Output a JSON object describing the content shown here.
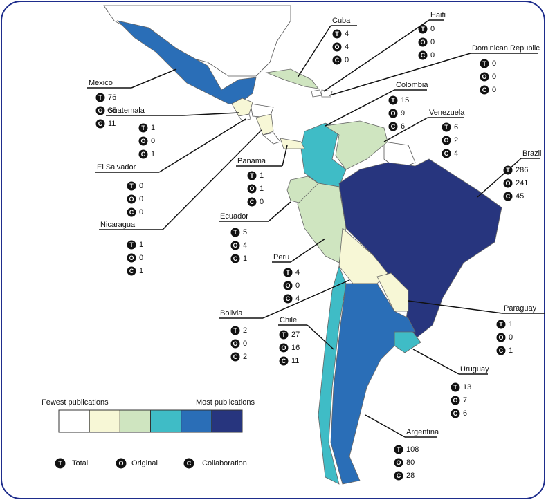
{
  "countries": [
    {
      "name": "Mexico",
      "total": 76,
      "original": 65,
      "collaboration": 11,
      "color": "#2a6eb7"
    },
    {
      "name": "Cuba",
      "total": 4,
      "original": 4,
      "collaboration": 0,
      "color": "#cfe5c0"
    },
    {
      "name": "Haiti",
      "total": 0,
      "original": 0,
      "collaboration": 0,
      "color": "#ffffff"
    },
    {
      "name": "Dominican Republic",
      "total": 0,
      "original": 0,
      "collaboration": 0,
      "color": "#ffffff"
    },
    {
      "name": "Colombia",
      "total": 15,
      "original": 9,
      "collaboration": 6,
      "color": "#3fbcc6"
    },
    {
      "name": "Guatemala",
      "total": 1,
      "original": 0,
      "collaboration": 1,
      "color": "#f7f7d6"
    },
    {
      "name": "Venezuela",
      "total": 6,
      "original": 2,
      "collaboration": 4,
      "color": "#cfe5c0"
    },
    {
      "name": "Brazil",
      "total": 286,
      "original": 241,
      "collaboration": 45,
      "color": "#27357e"
    },
    {
      "name": "El Salvador",
      "total": 0,
      "original": 0,
      "collaboration": 0,
      "color": "#ffffff"
    },
    {
      "name": "Panama",
      "total": 1,
      "original": 1,
      "collaboration": 0,
      "color": "#f7f7d6"
    },
    {
      "name": "Ecuador",
      "total": 5,
      "original": 4,
      "collaboration": 1,
      "color": "#cfe5c0"
    },
    {
      "name": "Nicaragua",
      "total": 1,
      "original": 0,
      "collaboration": 1,
      "color": "#f7f7d6"
    },
    {
      "name": "Peru",
      "total": 4,
      "original": 0,
      "collaboration": 4,
      "color": "#cfe5c0"
    },
    {
      "name": "Bolivia",
      "total": 2,
      "original": 0,
      "collaboration": 2,
      "color": "#f7f7d6"
    },
    {
      "name": "Chile",
      "total": 27,
      "original": 16,
      "collaboration": 11,
      "color": "#3fbcc6"
    },
    {
      "name": "Paraguay",
      "total": 1,
      "original": 0,
      "collaboration": 1,
      "color": "#f7f7d6"
    },
    {
      "name": "Uruguay",
      "total": 13,
      "original": 7,
      "collaboration": 6,
      "color": "#3fbcc6"
    },
    {
      "name": "Argentina",
      "total": 108,
      "original": 80,
      "collaboration": 28,
      "color": "#2a6eb7"
    }
  ],
  "legend": {
    "low": "Fewest publications",
    "high": "Most publications",
    "colors": [
      "#ffffff",
      "#f7f7d6",
      "#cfe5c0",
      "#3fbcc6",
      "#2a6eb7",
      "#27357e"
    ]
  },
  "key": [
    {
      "letter": "T",
      "label": "Total"
    },
    {
      "letter": "O",
      "label": "Original"
    },
    {
      "letter": "C",
      "label": "Collaboration"
    }
  ]
}
